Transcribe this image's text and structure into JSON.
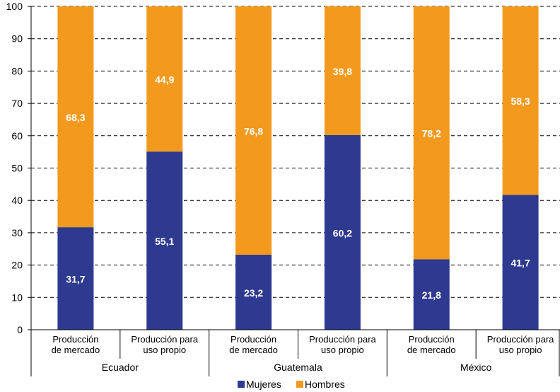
{
  "chart_data": {
    "type": "bar",
    "stacked": true,
    "ylim": [
      0,
      100
    ],
    "yticks": [
      0,
      10,
      20,
      30,
      40,
      50,
      60,
      70,
      80,
      90,
      100
    ],
    "grid": true,
    "legend_position": "bottom",
    "groups": [
      "Ecuador",
      "Guatemala",
      "México"
    ],
    "categories": [
      [
        "Producción",
        "de mercado"
      ],
      [
        "Producción para",
        "uso propio"
      ],
      [
        "Producción",
        "de mercado"
      ],
      [
        "Producción para",
        "uso propio"
      ],
      [
        "Producción",
        "de mercado"
      ],
      [
        "Producción para",
        "uso propio"
      ]
    ],
    "series": [
      {
        "name": "Mujeres",
        "color": "#2e3a8f",
        "values": [
          31.7,
          55.1,
          23.2,
          60.2,
          21.8,
          41.7
        ],
        "labels": [
          "31,7",
          "55,1",
          "23,2",
          "60,2",
          "21,8",
          "41,7"
        ]
      },
      {
        "name": "Hombres",
        "color": "#f39a1e",
        "values": [
          68.3,
          44.9,
          76.8,
          39.8,
          78.2,
          58.3
        ],
        "labels": [
          "68,3",
          "44,9",
          "76,8",
          "39,8",
          "78,2",
          "58,3"
        ]
      }
    ]
  }
}
